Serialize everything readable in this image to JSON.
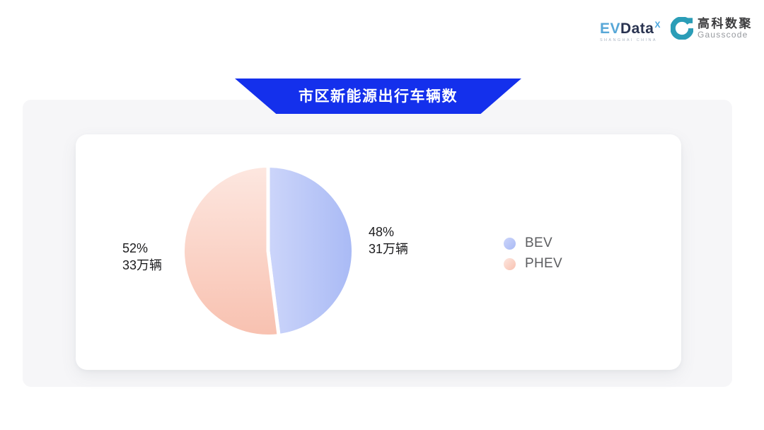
{
  "header": {
    "evdata_logo": {
      "ev": "EV",
      "data": "Data",
      "sup": "X",
      "subtitle": "SHANGHAI CHINA",
      "ev_color": "#57a7d7",
      "data_color": "#293350",
      "sup_color": "#49a6de"
    },
    "gausscode_logo": {
      "cn": "高科数聚",
      "en": "Gausscode",
      "mark_color": "#2b9db7"
    }
  },
  "banner": {
    "title": "市区新能源出行车辆数",
    "bg": "#1430ec",
    "text_color": "#ffffff"
  },
  "chart_data": {
    "type": "pie",
    "title": "市区新能源出行车辆数",
    "legend_position": "right",
    "legend_entries": [
      "BEV",
      "PHEV"
    ],
    "series": [
      {
        "name": "BEV",
        "percent": 48,
        "percent_label": "48%",
        "value": 31,
        "unit": "万辆",
        "value_label": "31万辆",
        "color_start": "#ccd5fa",
        "color_end": "#a9baf5"
      },
      {
        "name": "PHEV",
        "percent": 52,
        "percent_label": "52%",
        "value": 33,
        "unit": "万辆",
        "value_label": "33万辆",
        "color_start": "#fde7e0",
        "color_end": "#f8c1b0"
      }
    ]
  }
}
